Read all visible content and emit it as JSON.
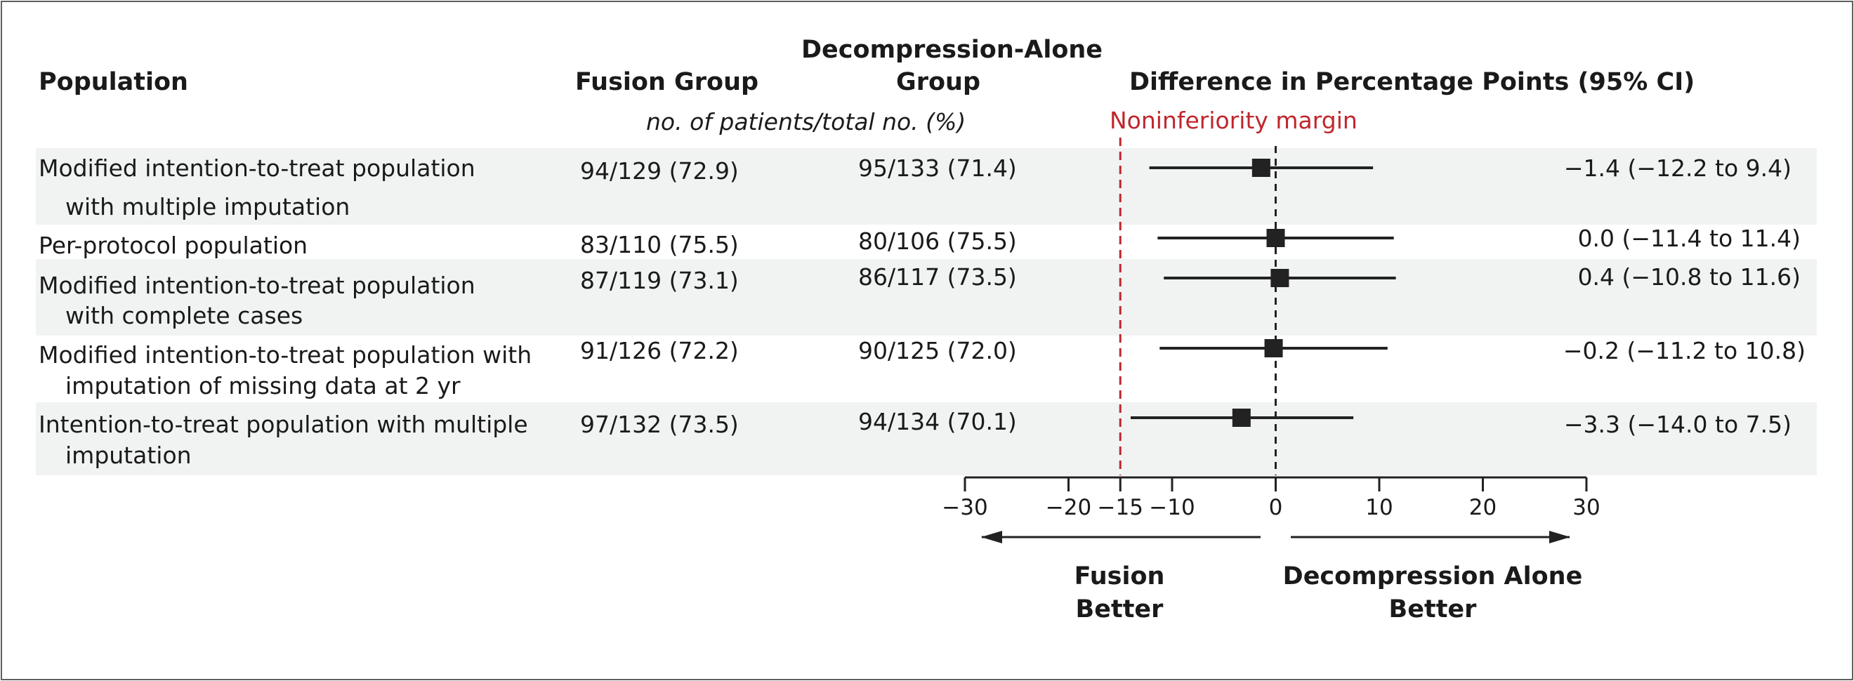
{
  "headers": {
    "population": "Population",
    "fusion": "Fusion Group",
    "decompression_line1": "Decompression-Alone",
    "decompression_line2": "Group",
    "difference": "Difference in Percentage Points (95% CI)",
    "subheader": "no. of patients/total no. (%)"
  },
  "margin_label": "Noninferiority margin",
  "direction_labels": {
    "left_line1": "Fusion",
    "left_line2": "Better",
    "right_line1": "Decompression Alone",
    "right_line2": "Better"
  },
  "rows": [
    {
      "label_line1": "Modified intention-to-treat population",
      "label_line2": "with multiple imputation",
      "fusion": "94/129 (72.9)",
      "decompression": "95/133 (71.4)",
      "difference": "−1.4 (−12.2 to 9.4)"
    },
    {
      "label_line1": "Per-protocol population",
      "label_line2": "",
      "fusion": "83/110 (75.5)",
      "decompression": "80/106 (75.5)",
      "difference": "0.0 (−11.4 to 11.4)"
    },
    {
      "label_line1": "Modified intention-to-treat population",
      "label_line2": "with complete cases",
      "fusion": "87/119 (73.1)",
      "decompression": "86/117 (73.5)",
      "difference": "0.4 (−10.8 to 11.6)"
    },
    {
      "label_line1": "Modified intention-to-treat population with",
      "label_line2": "imputation of missing data at 2 yr",
      "fusion": "91/126 (72.2)",
      "decompression": "90/125 (72.0)",
      "difference": "−0.2 (−11.2 to 10.8)"
    },
    {
      "label_line1": "Intention-to-treat population with multiple",
      "label_line2": "imputation",
      "fusion": "97/132 (73.5)",
      "decompression": "94/134 (70.1)",
      "difference": "−3.3 (−14.0 to 7.5)"
    }
  ],
  "chart_data": {
    "type": "forest",
    "xlim": [
      -30,
      30
    ],
    "xticks": [
      -30,
      -20,
      -15,
      -10,
      0,
      10,
      20,
      30
    ],
    "xtick_labels": [
      "−30",
      "−20",
      "−15",
      "−10",
      "0",
      "10",
      "20",
      "30"
    ],
    "reference_line": 0,
    "noninferiority_margin": -15,
    "points": [
      {
        "estimate": -1.4,
        "lower": -12.2,
        "upper": 9.4
      },
      {
        "estimate": 0.0,
        "lower": -11.4,
        "upper": 11.4
      },
      {
        "estimate": 0.4,
        "lower": -10.8,
        "upper": 11.6
      },
      {
        "estimate": -0.2,
        "lower": -11.2,
        "upper": 10.8
      },
      {
        "estimate": -3.3,
        "lower": -14.0,
        "upper": 7.5
      }
    ],
    "colors": {
      "marker": "#222222",
      "reference": "#222222",
      "margin": "#c0262d",
      "band": "#f1f3f2"
    }
  }
}
